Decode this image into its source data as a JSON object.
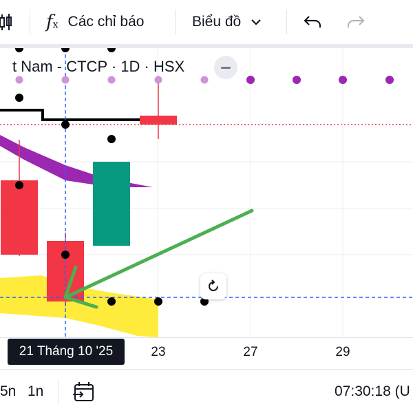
{
  "toolbar": {
    "indicators_label": "Các chỉ báo",
    "chart_menu_label": "Biểu đồ"
  },
  "legend": {
    "symbol_text": "t Nam - CTCP · 1D · HSX"
  },
  "time_axis": {
    "crosshair_date": "21 Tháng 10 '25",
    "ticks": [
      "23",
      "27",
      "29"
    ]
  },
  "bottom_bar": {
    "interval_5m": "5n",
    "interval_1m": "1n",
    "clock": "07:30:18 (U"
  },
  "colors": {
    "up_candle": "#089981",
    "down_candle": "#f23645",
    "crosshair": "#2962ff",
    "purple_band": "#9c27b0",
    "yellow_band": "#ffeb3b",
    "drawing_arrow": "#4caf50"
  },
  "icons": {
    "candles": "candlestick-icon",
    "indicators": "fx-icon",
    "chart_menu": "chevron-down-icon",
    "undo": "undo-icon",
    "redo": "redo-icon",
    "reset": "reset-icon",
    "date_range": "calendar-range-icon",
    "collapse": "minus-icon"
  }
}
